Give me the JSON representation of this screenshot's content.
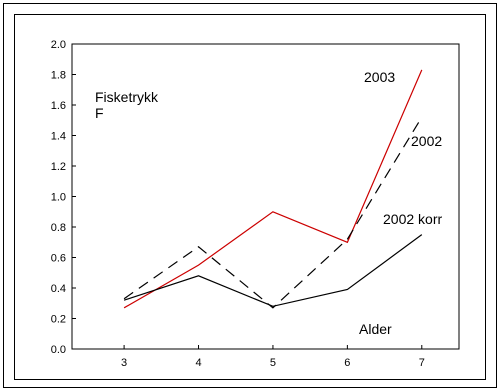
{
  "chart_data": {
    "type": "line",
    "title": "",
    "ylabel": "Fisketrykk F",
    "xlabel": "Alder",
    "ylabel_lines": [
      "Fisketrykk",
      "F"
    ],
    "xlim": [
      2.3,
      7.5
    ],
    "ylim": [
      0.0,
      2.0
    ],
    "x_ticks": [
      3,
      4,
      5,
      6,
      7
    ],
    "y_ticks": [
      0.0,
      0.2,
      0.4,
      0.6,
      0.8,
      1.0,
      1.2,
      1.4,
      1.6,
      1.8,
      2.0
    ],
    "y_tick_labels": [
      "0.0",
      "0.2",
      "0.4",
      "0.6",
      "0.8",
      "1.0",
      "1.2",
      "1.4",
      "1.6",
      "1.8",
      "2.0"
    ],
    "grid": false,
    "series": [
      {
        "name": "2003",
        "color": "#cc0000",
        "dash": "solid",
        "x": [
          3,
          4,
          5,
          6,
          7
        ],
        "y": [
          0.27,
          0.55,
          0.9,
          0.7,
          1.83
        ]
      },
      {
        "name": "2002",
        "color": "#000000",
        "dash": "dashed",
        "x": [
          3,
          4,
          5,
          6,
          7
        ],
        "y": [
          0.33,
          0.67,
          0.27,
          0.72,
          1.52
        ]
      },
      {
        "name": "2002 korr",
        "color": "#000000",
        "dash": "solid",
        "x": [
          3,
          4,
          5,
          6,
          7
        ],
        "y": [
          0.32,
          0.48,
          0.28,
          0.39,
          0.75
        ]
      }
    ]
  }
}
